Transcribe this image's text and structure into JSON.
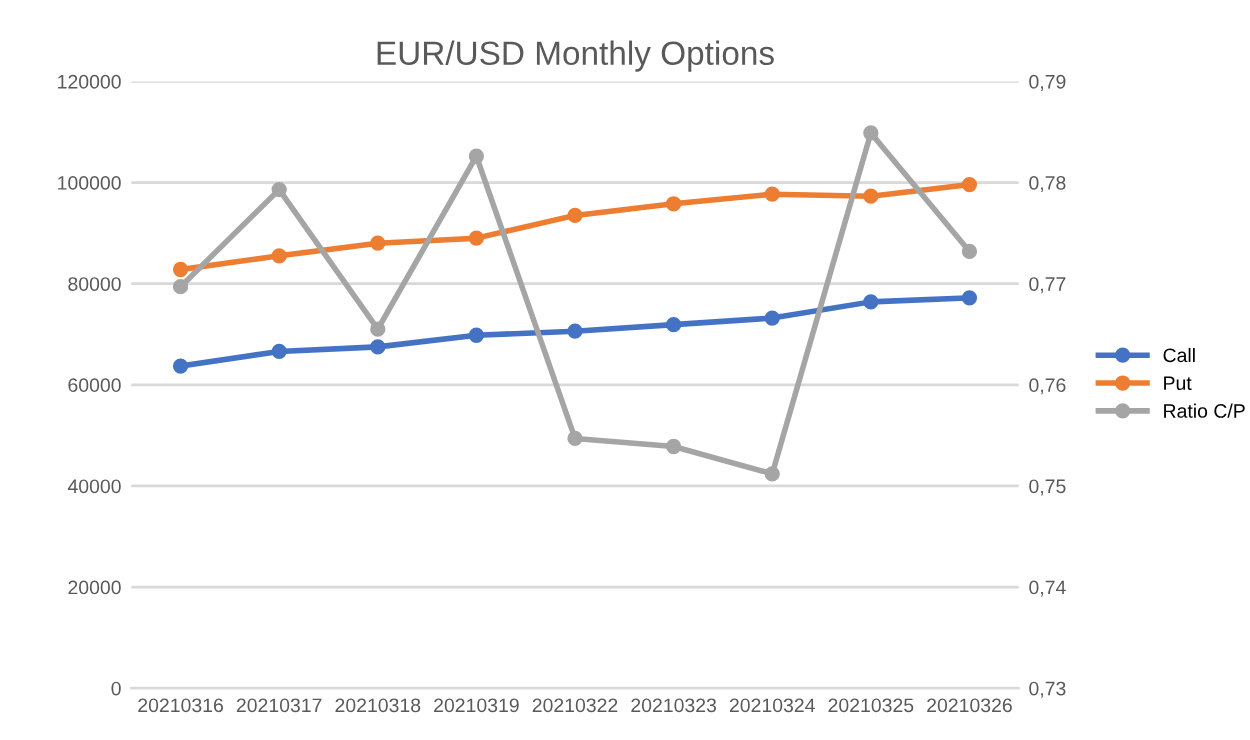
{
  "chart_data": {
    "type": "line",
    "title": "EUR/USD Monthly Options",
    "categories": [
      "20210316",
      "20210317",
      "20210318",
      "20210319",
      "20210322",
      "20210323",
      "20210324",
      "20210325",
      "20210326"
    ],
    "series": [
      {
        "name": "Call",
        "color": "#4472c4",
        "values": [
          63700,
          66600,
          67500,
          69800,
          70600,
          71900,
          73200,
          76400,
          77200
        ]
      },
      {
        "name": "Put",
        "color": "#ed7d31",
        "values": [
          82800,
          85500,
          88000,
          89000,
          93500,
          95800,
          97700,
          97300,
          99600
        ]
      },
      {
        "name": "Ratio C/P",
        "color": "#a5a5a5",
        "axis": "y2",
        "values": [
          0.7697,
          0.7793,
          0.7655,
          0.7826,
          0.7547,
          0.7539,
          0.7512,
          0.7849,
          0.7732
        ]
      }
    ],
    "ylim": [
      0,
      120000
    ],
    "yticks": [
      0,
      20000,
      40000,
      60000,
      80000,
      100000,
      120000
    ],
    "y2lim": [
      0.73,
      0.79
    ],
    "y2ticks": [
      {
        "value": 0.73,
        "label": "0,73"
      },
      {
        "value": 0.74,
        "label": "0,74"
      },
      {
        "value": 0.75,
        "label": "0,75"
      },
      {
        "value": 0.76,
        "label": "0,76"
      },
      {
        "value": 0.77,
        "label": "0,77"
      },
      {
        "value": 0.78,
        "label": "0,78"
      },
      {
        "value": 0.79,
        "label": "0,79"
      }
    ],
    "grid": "y",
    "legend": "right",
    "marker": "circle",
    "line_style": "solid"
  }
}
